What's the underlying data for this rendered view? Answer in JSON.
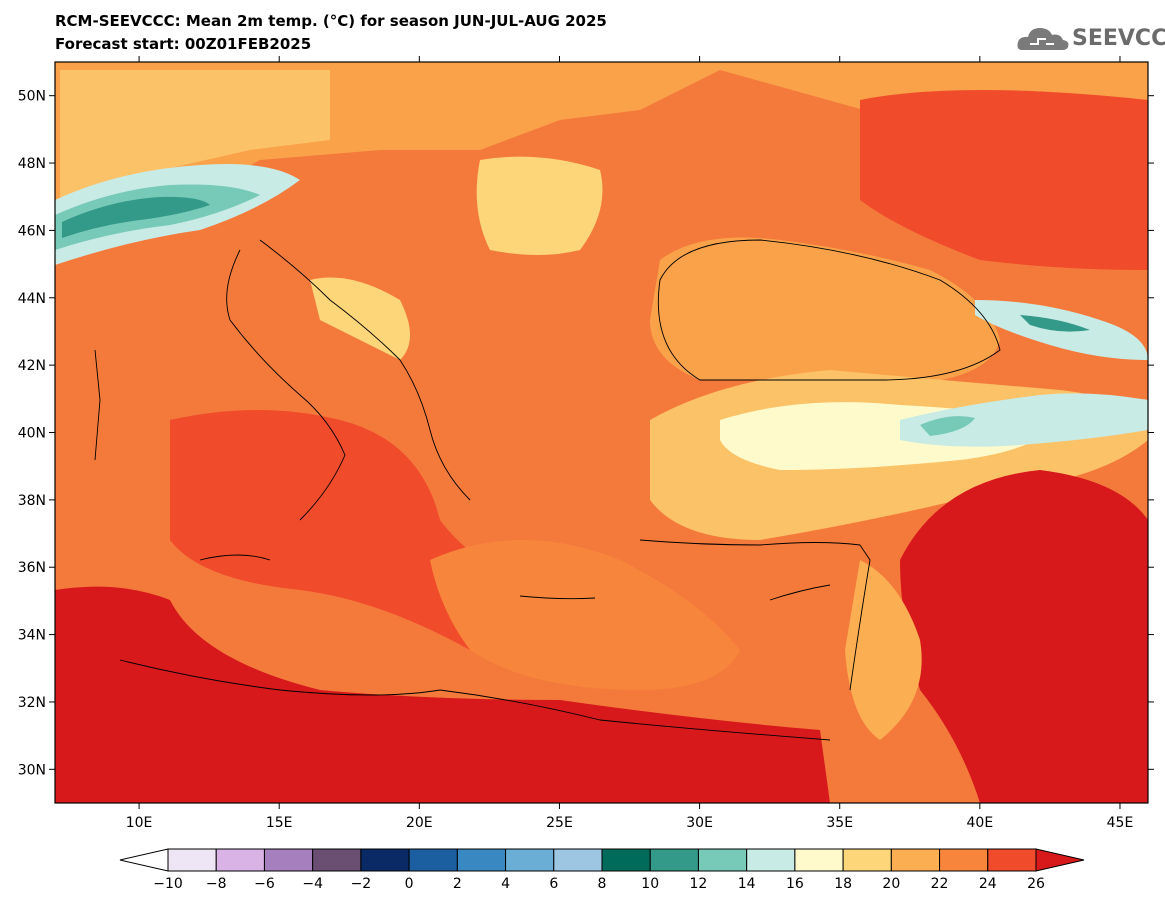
{
  "header": {
    "title_line1": "RCM-SEEVCCC: Mean 2m temp. (°C) for season JUN-JUL-AUG 2025",
    "title_line2": "Forecast start: 00Z01FEB2025"
  },
  "logo": {
    "text": "SEEVCCC",
    "icon": "cloud-icon"
  },
  "map": {
    "lat_labels": [
      "50N",
      "48N",
      "46N",
      "44N",
      "42N",
      "40N",
      "38N",
      "36N",
      "34N",
      "32N",
      "30N"
    ],
    "lat_values": [
      50,
      48,
      46,
      44,
      42,
      40,
      38,
      36,
      34,
      32,
      30
    ],
    "lon_labels": [
      "10E",
      "15E",
      "20E",
      "25E",
      "30E",
      "35E",
      "40E",
      "45E"
    ],
    "lon_values": [
      10,
      15,
      20,
      25,
      30,
      35,
      40,
      45
    ],
    "lon_range": [
      7,
      46
    ],
    "lat_range": [
      29,
      51
    ]
  },
  "colorbar": {
    "tick_labels": [
      "−10",
      "−8",
      "−6",
      "−4",
      "−2",
      "0",
      "2",
      "4",
      "6",
      "8",
      "10",
      "12",
      "14",
      "16",
      "18",
      "20",
      "22",
      "24",
      "26"
    ],
    "colors": [
      "#efe6f5",
      "#d9b3e6",
      "#a67fbf",
      "#6a4f73",
      "#0a2a66",
      "#1c5fa1",
      "#3a88c2",
      "#6aaed6",
      "#9dc6e2",
      "#006b5a",
      "#339988",
      "#77c9b8",
      "#c8ebe6",
      "#fffacb",
      "#fdd67a",
      "#fbae52",
      "#f7853b",
      "#f04b2b"
    ],
    "under_color": "#ffffff",
    "over_color": "#d7191c"
  }
}
